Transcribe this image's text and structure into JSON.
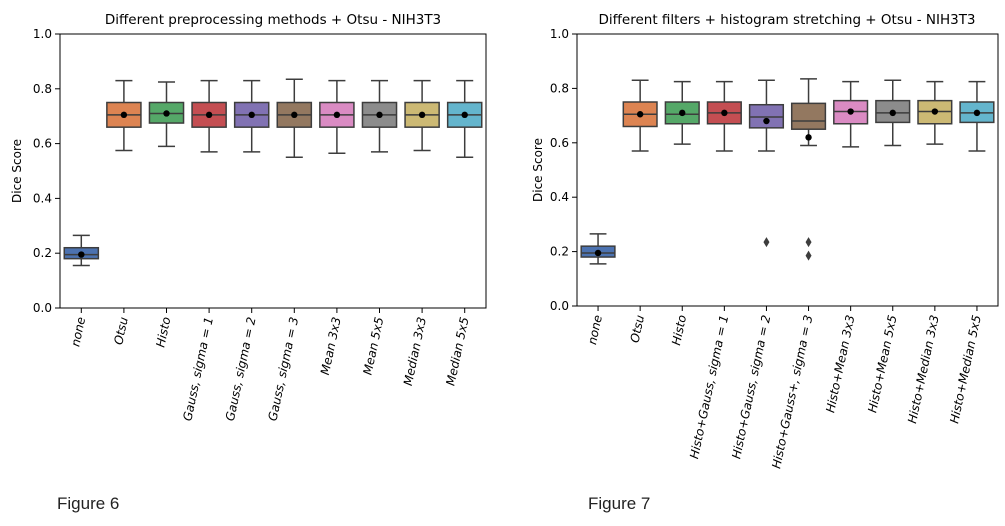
{
  "captions": [
    "Figure 6",
    "Figure 7"
  ],
  "chart_data": [
    {
      "type": "box",
      "title": "Different preprocessing methods + Otsu - NIH3T3",
      "xlabel": "",
      "ylabel": "Dice Score",
      "ylim": [
        0.0,
        1.0
      ],
      "yticks": [
        "0.0",
        "0.2",
        "0.4",
        "0.6",
        "0.8",
        "1.0"
      ],
      "grid": false,
      "categories": [
        "none",
        "Otsu",
        "Histo",
        "Gauss, sigma = 1",
        "Gauss, sigma = 2",
        "Gauss, sigma = 3",
        "Mean 3x3",
        "Mean 5x5",
        "Median 3x3",
        "Median 5x5"
      ],
      "colors": [
        "#4c72b0",
        "#dd8452",
        "#55a868",
        "#c44e52",
        "#8172b3",
        "#937860",
        "#da8bc3",
        "#8c8c8c",
        "#ccb974",
        "#64b5cd"
      ],
      "boxes": [
        {
          "whislo": 0.155,
          "q1": 0.18,
          "med": 0.195,
          "q3": 0.22,
          "whishi": 0.265,
          "mean": 0.195,
          "fliers": []
        },
        {
          "whislo": 0.575,
          "q1": 0.66,
          "med": 0.705,
          "q3": 0.75,
          "whishi": 0.83,
          "mean": 0.705,
          "fliers": []
        },
        {
          "whislo": 0.59,
          "q1": 0.675,
          "med": 0.71,
          "q3": 0.75,
          "whishi": 0.825,
          "mean": 0.71,
          "fliers": []
        },
        {
          "whislo": 0.57,
          "q1": 0.66,
          "med": 0.705,
          "q3": 0.75,
          "whishi": 0.83,
          "mean": 0.705,
          "fliers": []
        },
        {
          "whislo": 0.57,
          "q1": 0.66,
          "med": 0.705,
          "q3": 0.75,
          "whishi": 0.83,
          "mean": 0.705,
          "fliers": []
        },
        {
          "whislo": 0.55,
          "q1": 0.66,
          "med": 0.705,
          "q3": 0.75,
          "whishi": 0.835,
          "mean": 0.705,
          "fliers": []
        },
        {
          "whislo": 0.565,
          "q1": 0.66,
          "med": 0.705,
          "q3": 0.75,
          "whishi": 0.83,
          "mean": 0.705,
          "fliers": []
        },
        {
          "whislo": 0.57,
          "q1": 0.66,
          "med": 0.705,
          "q3": 0.75,
          "whishi": 0.83,
          "mean": 0.705,
          "fliers": []
        },
        {
          "whislo": 0.575,
          "q1": 0.66,
          "med": 0.705,
          "q3": 0.75,
          "whishi": 0.83,
          "mean": 0.705,
          "fliers": []
        },
        {
          "whislo": 0.55,
          "q1": 0.66,
          "med": 0.705,
          "q3": 0.75,
          "whishi": 0.83,
          "mean": 0.705,
          "fliers": []
        }
      ]
    },
    {
      "type": "box",
      "title": "Different filters + histogram stretching + Otsu - NIH3T3",
      "xlabel": "",
      "ylabel": "Dice Score",
      "ylim": [
        0.0,
        1.0
      ],
      "yticks": [
        "0.0",
        "0.2",
        "0.4",
        "0.6",
        "0.8",
        "1.0"
      ],
      "grid": false,
      "categories": [
        "none",
        "Otsu",
        "Histo",
        "Histo+Gauss, sigma = 1",
        "Histo+Gauss, sigma = 2",
        "Histo+Gauss+, sigma = 3",
        "Histo+Mean 3x3",
        "Histo+Mean 5x5",
        "Histo+Median 3x3",
        "Histo+Median 5x5"
      ],
      "colors": [
        "#4c72b0",
        "#dd8452",
        "#55a868",
        "#c44e52",
        "#8172b3",
        "#937860",
        "#da8bc3",
        "#8c8c8c",
        "#ccb974",
        "#64b5cd"
      ],
      "boxes": [
        {
          "whislo": 0.155,
          "q1": 0.18,
          "med": 0.195,
          "q3": 0.22,
          "whishi": 0.265,
          "mean": 0.195,
          "fliers": []
        },
        {
          "whislo": 0.57,
          "q1": 0.66,
          "med": 0.705,
          "q3": 0.75,
          "whishi": 0.83,
          "mean": 0.705,
          "fliers": []
        },
        {
          "whislo": 0.595,
          "q1": 0.67,
          "med": 0.705,
          "q3": 0.75,
          "whishi": 0.825,
          "mean": 0.71,
          "fliers": []
        },
        {
          "whislo": 0.57,
          "q1": 0.67,
          "med": 0.71,
          "q3": 0.75,
          "whishi": 0.825,
          "mean": 0.71,
          "fliers": []
        },
        {
          "whislo": 0.57,
          "q1": 0.655,
          "med": 0.695,
          "q3": 0.74,
          "whishi": 0.83,
          "mean": 0.68,
          "fliers": [
            0.235
          ]
        },
        {
          "whislo": 0.59,
          "q1": 0.65,
          "med": 0.68,
          "q3": 0.745,
          "whishi": 0.835,
          "mean": 0.62,
          "fliers": [
            0.235,
            0.185
          ]
        },
        {
          "whislo": 0.585,
          "q1": 0.67,
          "med": 0.715,
          "q3": 0.755,
          "whishi": 0.825,
          "mean": 0.715,
          "fliers": []
        },
        {
          "whislo": 0.59,
          "q1": 0.675,
          "med": 0.71,
          "q3": 0.755,
          "whishi": 0.83,
          "mean": 0.71,
          "fliers": []
        },
        {
          "whislo": 0.595,
          "q1": 0.67,
          "med": 0.715,
          "q3": 0.755,
          "whishi": 0.825,
          "mean": 0.715,
          "fliers": []
        },
        {
          "whislo": 0.57,
          "q1": 0.675,
          "med": 0.71,
          "q3": 0.75,
          "whishi": 0.825,
          "mean": 0.71,
          "fliers": []
        }
      ]
    }
  ]
}
